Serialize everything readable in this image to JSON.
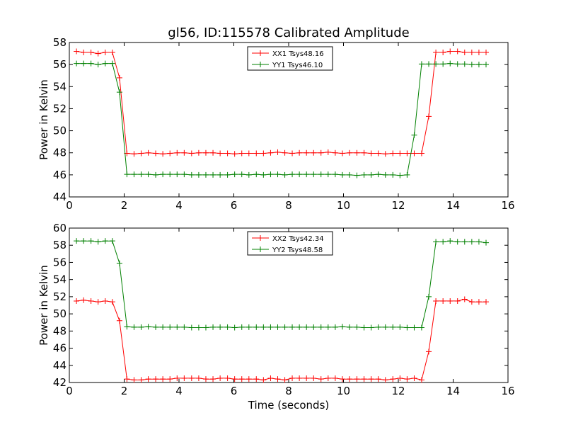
{
  "chart_data": [
    {
      "type": "line",
      "title": "gl56, ID:115578 Calibrated Amplitude",
      "xlabel": "",
      "ylabel": "Power in Kelvin",
      "xlim": [
        0,
        16
      ],
      "ylim": [
        44,
        58
      ],
      "xticks": [
        0,
        2,
        4,
        6,
        8,
        10,
        12,
        14,
        16
      ],
      "yticks": [
        44,
        46,
        48,
        50,
        52,
        54,
        56,
        58
      ],
      "legend_position": "top-center",
      "grid": false,
      "x": [
        0.26,
        0.52,
        0.79,
        1.05,
        1.31,
        1.57,
        1.83,
        2.1,
        2.36,
        2.62,
        2.88,
        3.15,
        3.41,
        3.67,
        3.93,
        4.19,
        4.46,
        4.72,
        4.98,
        5.24,
        5.5,
        5.77,
        6.03,
        6.29,
        6.55,
        6.82,
        7.08,
        7.34,
        7.6,
        7.86,
        8.13,
        8.39,
        8.65,
        8.91,
        9.18,
        9.44,
        9.7,
        9.96,
        10.22,
        10.49,
        10.75,
        11.01,
        11.27,
        11.53,
        11.8,
        12.06,
        12.32,
        12.58,
        12.85,
        13.11,
        13.37,
        13.63,
        13.89,
        14.16,
        14.42,
        14.68,
        14.94,
        15.2
      ],
      "series": [
        {
          "name": "XX1 Tsys48.16",
          "color": "#ff0000",
          "values": [
            57.2,
            57.1,
            57.1,
            57.0,
            57.1,
            57.1,
            54.8,
            47.95,
            47.9,
            47.95,
            48.0,
            47.95,
            47.9,
            47.95,
            48.0,
            48.0,
            47.95,
            48.0,
            48.0,
            48.0,
            47.95,
            47.95,
            47.9,
            47.95,
            47.95,
            47.95,
            47.95,
            48.0,
            48.05,
            48.0,
            47.95,
            48.0,
            48.0,
            48.0,
            48.0,
            48.05,
            48.0,
            47.95,
            48.0,
            48.0,
            48.0,
            47.95,
            47.95,
            47.9,
            47.95,
            47.95,
            47.95,
            47.95,
            47.95,
            51.3,
            57.1,
            57.1,
            57.2,
            57.2,
            57.1,
            57.1,
            57.1,
            57.1
          ],
          "values_note_trim": "first 56 used"
        },
        {
          "name": "YY1 Tsys46.10",
          "color": "#008000",
          "values": [
            56.1,
            56.1,
            56.1,
            56.0,
            56.1,
            56.1,
            53.5,
            46.05,
            46.05,
            46.05,
            46.05,
            46.0,
            46.05,
            46.05,
            46.05,
            46.05,
            46.0,
            46.0,
            46.0,
            46.0,
            46.0,
            46.0,
            46.05,
            46.05,
            46.0,
            46.05,
            46.0,
            46.05,
            46.05,
            46.0,
            46.05,
            46.05,
            46.05,
            46.05,
            46.05,
            46.05,
            46.05,
            46.0,
            46.0,
            45.95,
            46.0,
            46.0,
            46.05,
            46.0,
            46.0,
            45.95,
            46.0,
            49.6,
            56.05,
            56.05,
            56.05,
            56.05,
            56.1,
            56.05,
            56.05,
            56.0,
            56.0,
            56.0
          ]
        }
      ]
    },
    {
      "type": "line",
      "title": "",
      "xlabel": "Time (seconds)",
      "ylabel": "Power in Kelvin",
      "xlim": [
        0,
        16
      ],
      "ylim": [
        42,
        60
      ],
      "xticks": [
        0,
        2,
        4,
        6,
        8,
        10,
        12,
        14,
        16
      ],
      "yticks": [
        42,
        44,
        46,
        48,
        50,
        52,
        54,
        56,
        58,
        60
      ],
      "legend_position": "top-center",
      "grid": false,
      "x": [
        0.26,
        0.52,
        0.79,
        1.05,
        1.31,
        1.57,
        1.83,
        2.1,
        2.36,
        2.62,
        2.88,
        3.15,
        3.41,
        3.67,
        3.93,
        4.19,
        4.46,
        4.72,
        4.98,
        5.24,
        5.5,
        5.77,
        6.03,
        6.29,
        6.55,
        6.82,
        7.08,
        7.34,
        7.6,
        7.86,
        8.13,
        8.39,
        8.65,
        8.91,
        9.18,
        9.44,
        9.7,
        9.96,
        10.22,
        10.49,
        10.75,
        11.01,
        11.27,
        11.53,
        11.8,
        12.06,
        12.32,
        12.58,
        12.85,
        13.11,
        13.37,
        13.63,
        13.89,
        14.16,
        14.42,
        14.68,
        14.94,
        15.2
      ],
      "series": [
        {
          "name": "XX2 Tsys42.34",
          "color": "#ff0000",
          "values": [
            51.5,
            51.6,
            51.5,
            51.4,
            51.5,
            51.4,
            49.2,
            42.4,
            42.3,
            42.3,
            42.4,
            42.4,
            42.4,
            42.4,
            42.5,
            42.5,
            42.5,
            42.5,
            42.4,
            42.4,
            42.5,
            42.5,
            42.4,
            42.4,
            42.4,
            42.4,
            42.3,
            42.5,
            42.4,
            42.3,
            42.5,
            42.5,
            42.5,
            42.5,
            42.4,
            42.5,
            42.5,
            42.4,
            42.4,
            42.4,
            42.4,
            42.4,
            42.4,
            42.3,
            42.4,
            42.5,
            42.4,
            42.5,
            42.3,
            45.6,
            51.5,
            51.5,
            51.5,
            51.5,
            51.7,
            51.4,
            51.4,
            51.4
          ]
        },
        {
          "name": "YY2 Tsys48.58",
          "color": "#008000",
          "values": [
            58.5,
            58.5,
            58.5,
            58.4,
            58.5,
            58.5,
            55.9,
            48.5,
            48.45,
            48.45,
            48.5,
            48.45,
            48.45,
            48.45,
            48.45,
            48.45,
            48.4,
            48.4,
            48.4,
            48.45,
            48.45,
            48.45,
            48.4,
            48.45,
            48.45,
            48.45,
            48.45,
            48.45,
            48.45,
            48.45,
            48.45,
            48.45,
            48.45,
            48.45,
            48.45,
            48.45,
            48.45,
            48.5,
            48.45,
            48.45,
            48.4,
            48.4,
            48.45,
            48.45,
            48.45,
            48.45,
            48.4,
            48.4,
            48.4,
            52.0,
            58.4,
            58.4,
            58.5,
            58.4,
            58.4,
            58.4,
            58.4,
            58.3
          ]
        }
      ]
    }
  ]
}
